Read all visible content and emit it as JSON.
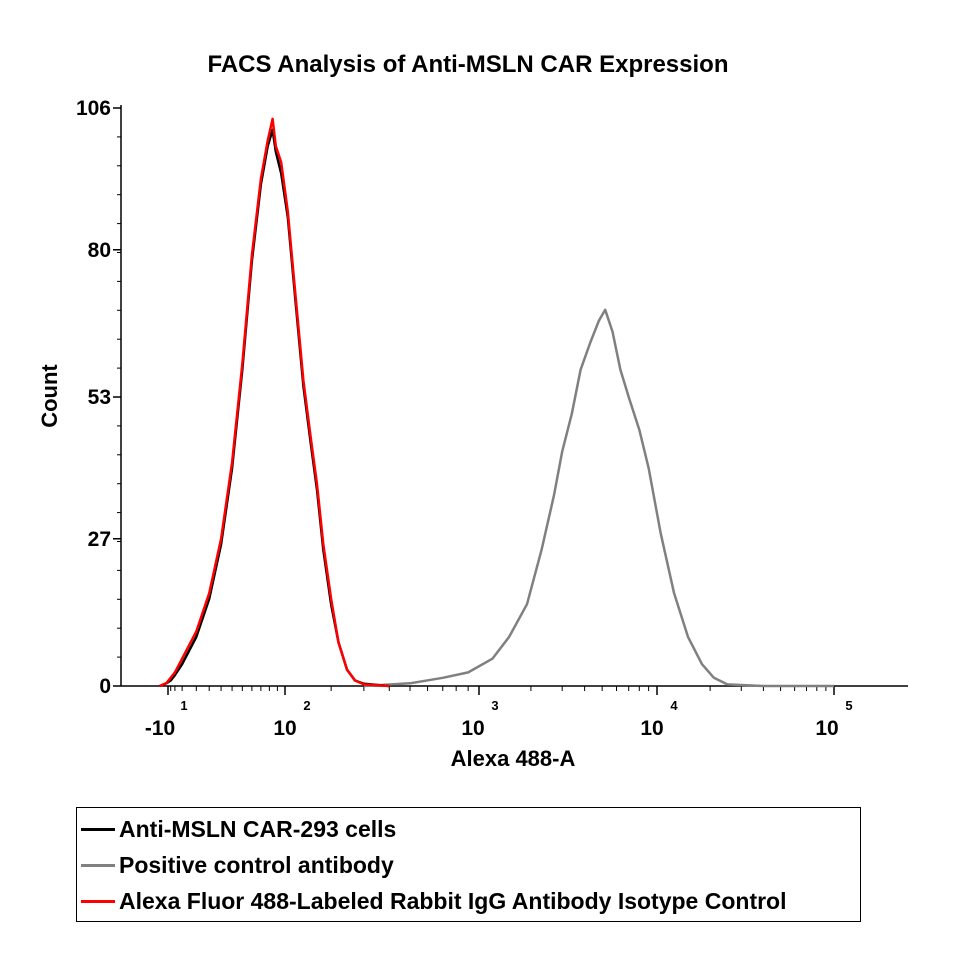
{
  "chart_data": {
    "type": "line",
    "title": "FACS Analysis of Anti-MSLN CAR Expression",
    "xlabel": "Alexa 488-A",
    "ylabel": "Count",
    "x_scale": "biexponential",
    "ylim": [
      0,
      106
    ],
    "y_ticks": [
      0,
      27,
      53,
      80,
      106
    ],
    "x_ticks": [
      {
        "base": "-10",
        "exp": "1",
        "value": -10
      },
      {
        "base": "10",
        "exp": "2",
        "value": 100
      },
      {
        "base": "10",
        "exp": "3",
        "value": 1000
      },
      {
        "base": "10",
        "exp": "4",
        "value": 10000
      },
      {
        "base": "10",
        "exp": "5",
        "value": 100000
      }
    ],
    "grid": false,
    "legend_position": "bottom",
    "series": [
      {
        "name": "Anti-MSLN CAR-293 cells",
        "color": "#000000",
        "points": [
          [
            -20,
            0
          ],
          [
            -12,
            0.5
          ],
          [
            -8,
            1
          ],
          [
            -5,
            2
          ],
          [
            0,
            4
          ],
          [
            10,
            9
          ],
          [
            20,
            16
          ],
          [
            30,
            26
          ],
          [
            40,
            40
          ],
          [
            50,
            58
          ],
          [
            60,
            78
          ],
          [
            70,
            92
          ],
          [
            78,
            99
          ],
          [
            84,
            102
          ],
          [
            88,
            98
          ],
          [
            95,
            94
          ],
          [
            105,
            86
          ],
          [
            120,
            70
          ],
          [
            135,
            55
          ],
          [
            150,
            45
          ],
          [
            165,
            36
          ],
          [
            180,
            25
          ],
          [
            200,
            15
          ],
          [
            220,
            8
          ],
          [
            245,
            3
          ],
          [
            270,
            1
          ],
          [
            300,
            0.4
          ],
          [
            400,
            0
          ]
        ]
      },
      {
        "name": "Positive control antibody",
        "color": "#808080",
        "points": [
          [
            300,
            0
          ],
          [
            500,
            0.5
          ],
          [
            700,
            1.5
          ],
          [
            900,
            2.5
          ],
          [
            1200,
            5
          ],
          [
            1500,
            9
          ],
          [
            1900,
            15
          ],
          [
            2300,
            25
          ],
          [
            2700,
            35
          ],
          [
            3000,
            43
          ],
          [
            3400,
            50
          ],
          [
            3800,
            58
          ],
          [
            4300,
            63
          ],
          [
            4800,
            67
          ],
          [
            5200,
            69
          ],
          [
            5700,
            65
          ],
          [
            6300,
            58
          ],
          [
            7000,
            53
          ],
          [
            8000,
            47
          ],
          [
            9000,
            40
          ],
          [
            10500,
            28
          ],
          [
            12500,
            17
          ],
          [
            15000,
            9
          ],
          [
            18000,
            4
          ],
          [
            21000,
            1.5
          ],
          [
            25000,
            0.3
          ],
          [
            40000,
            0
          ],
          [
            100000,
            0
          ]
        ]
      },
      {
        "name": "Alexa Fluor 488-Labeled Rabbit IgG Antibody Isotype Control",
        "color": "#ff0000",
        "points": [
          [
            -20,
            0
          ],
          [
            -12,
            0.5
          ],
          [
            -8,
            1.5
          ],
          [
            -5,
            2.5
          ],
          [
            0,
            5
          ],
          [
            10,
            10
          ],
          [
            20,
            17
          ],
          [
            30,
            27
          ],
          [
            40,
            41
          ],
          [
            50,
            59
          ],
          [
            60,
            79
          ],
          [
            70,
            93
          ],
          [
            78,
            100
          ],
          [
            84,
            104
          ],
          [
            88,
            99
          ],
          [
            95,
            96
          ],
          [
            105,
            87
          ],
          [
            120,
            71
          ],
          [
            135,
            56
          ],
          [
            150,
            46
          ],
          [
            165,
            37
          ],
          [
            180,
            26
          ],
          [
            200,
            16
          ],
          [
            220,
            8
          ],
          [
            245,
            3
          ],
          [
            270,
            1
          ],
          [
            300,
            0.3
          ],
          [
            400,
            0
          ]
        ]
      }
    ]
  }
}
